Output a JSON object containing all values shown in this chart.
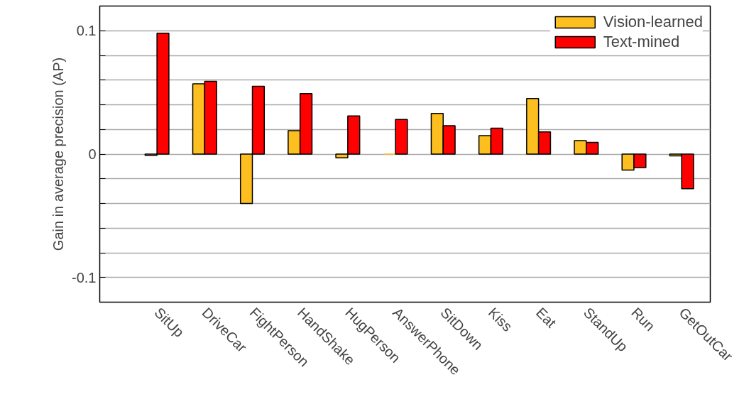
{
  "chart_data": {
    "type": "bar",
    "ylabel": "Gain in average precision (AP)",
    "categories": [
      "SitUp",
      "DriveCar",
      "FightPerson",
      "HandShake",
      "HugPerson",
      "AnswerPhone",
      "SitDown",
      "Kiss",
      "Eat",
      "StandUp",
      "Run",
      "GetOutCar"
    ],
    "series": [
      {
        "name": "Vision-learned",
        "color": "#fdbf1f",
        "values": [
          -0.001,
          0.057,
          -0.04,
          0.019,
          -0.003,
          0,
          0.033,
          0.015,
          0.045,
          0.011,
          -0.013,
          -0.0015
        ]
      },
      {
        "name": "Text-mined",
        "color": "#ff0000",
        "values": [
          0.098,
          0.059,
          0.055,
          0.049,
          0.031,
          0.028,
          0.023,
          0.021,
          0.018,
          0.0095,
          -0.011,
          -0.028
        ]
      }
    ],
    "ylim": [
      -0.12,
      0.12
    ],
    "yticks": [
      {
        "value": -0.12,
        "label": null
      },
      {
        "value": -0.1,
        "label": "-0.1"
      },
      {
        "value": -0.08,
        "label": null
      },
      {
        "value": -0.06,
        "label": null
      },
      {
        "value": -0.04,
        "label": null
      },
      {
        "value": -0.02,
        "label": null
      },
      0,
      {
        "value": 0.02,
        "label": null
      },
      {
        "value": 0.04,
        "label": null
      },
      {
        "value": 0.06,
        "label": null
      },
      {
        "value": 0.08,
        "label": null
      },
      {
        "value": 0.1,
        "label": "0.1"
      },
      {
        "value": 0.12,
        "label": null
      }
    ],
    "grid": "y",
    "legend": "top right"
  }
}
